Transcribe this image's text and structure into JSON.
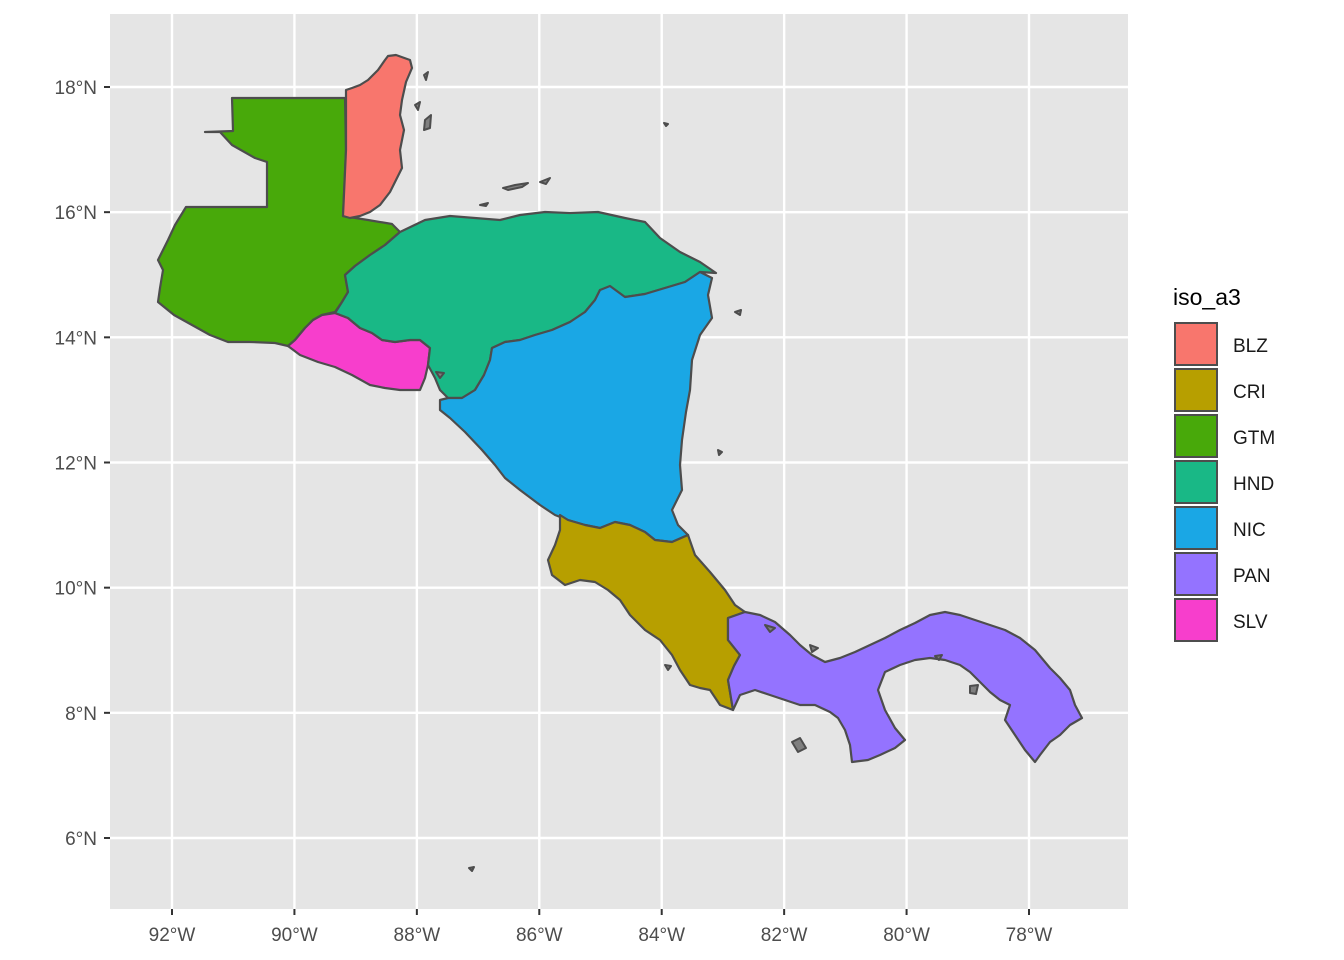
{
  "map": {
    "panel_background": "#e5e5e5",
    "grid_color": "#ffffff",
    "outline_color": "#4d4d4d",
    "x_ticks": [
      "92°W",
      "90°W",
      "88°W",
      "86°W",
      "84°W",
      "82°W",
      "80°W",
      "78°W"
    ],
    "y_ticks": [
      "18°N",
      "16°N",
      "14°N",
      "12°N",
      "10°N",
      "8°N",
      "6°N"
    ],
    "x_tick_values": [
      -92,
      -90,
      -88,
      -86,
      -84,
      -82,
      -80,
      -78
    ],
    "y_tick_values": [
      18,
      16,
      14,
      12,
      10,
      8,
      6
    ],
    "xlim": [
      -93,
      -76.4
    ],
    "ylim": [
      4.9,
      19.1
    ]
  },
  "legend": {
    "title": "iso_a3",
    "items": [
      {
        "label": "BLZ",
        "color": "#F8766D"
      },
      {
        "label": "CRI",
        "color": "#B79F00"
      },
      {
        "label": "GTM",
        "color": "#48A90A"
      },
      {
        "label": "HND",
        "color": "#19B886"
      },
      {
        "label": "NIC",
        "color": "#1AA7E5"
      },
      {
        "label": "PAN",
        "color": "#9473FF"
      },
      {
        "label": "SLV",
        "color": "#F73ECC"
      }
    ]
  },
  "countries": [
    {
      "iso": "BLZ",
      "color": "#F8766D"
    },
    {
      "iso": "CRI",
      "color": "#B79F00"
    },
    {
      "iso": "GTM",
      "color": "#48A90A"
    },
    {
      "iso": "HND",
      "color": "#19B886"
    },
    {
      "iso": "NIC",
      "color": "#1AA7E5"
    },
    {
      "iso": "PAN",
      "color": "#9473FF"
    },
    {
      "iso": "SLV",
      "color": "#F73ECC"
    }
  ]
}
